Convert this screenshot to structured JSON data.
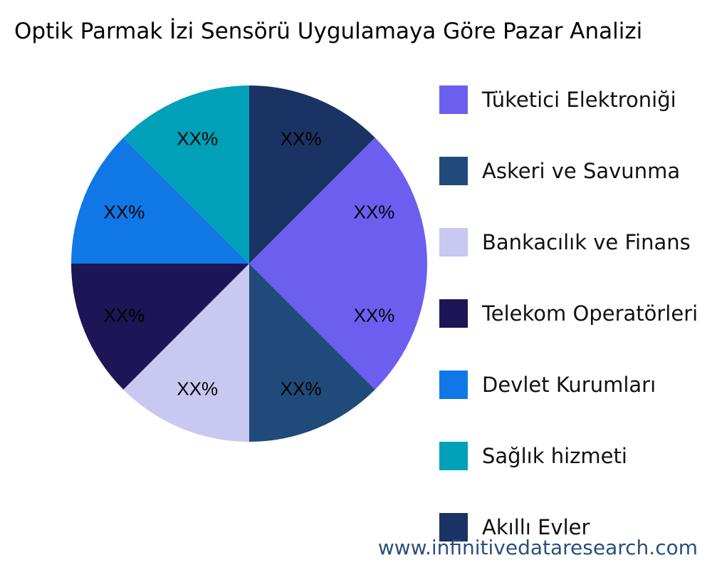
{
  "chart_data": {
    "type": "pie",
    "title": "Optik Parmak İzi Sensörü Uygulamaya Göre Pazar Analizi",
    "slices": [
      {
        "name": "Tüketici Elektroniği",
        "value": 12.5,
        "label": "XX%",
        "color": "#6c5ff0"
      },
      {
        "name": "Askeri ve Savunma",
        "value": 12.5,
        "label": "XX%",
        "color": "#1f4a7a"
      },
      {
        "name": "Bankacılık ve Finans",
        "value": 12.5,
        "label": "XX%",
        "color": "#c8c8f0"
      },
      {
        "name": "Telekom Operatörleri",
        "value": 12.5,
        "label": "XX%",
        "color": "#1c1656"
      },
      {
        "name": "Devlet Kurumları",
        "value": 12.5,
        "label": "XX%",
        "color": "#0f78e6"
      },
      {
        "name": "Sağlık hizmeti",
        "value": 12.5,
        "label": "XX%",
        "color": "#00a0b8"
      },
      {
        "name": "Akıllı Evler",
        "value": 12.5,
        "label": "XX%",
        "color": "#1a3364"
      },
      {
        "name": "",
        "value": 12.5,
        "label": "XX%",
        "color": "#6c5ff0"
      }
    ],
    "legend_placement": "right"
  },
  "watermark": "www.infinitivedataresearch.com"
}
